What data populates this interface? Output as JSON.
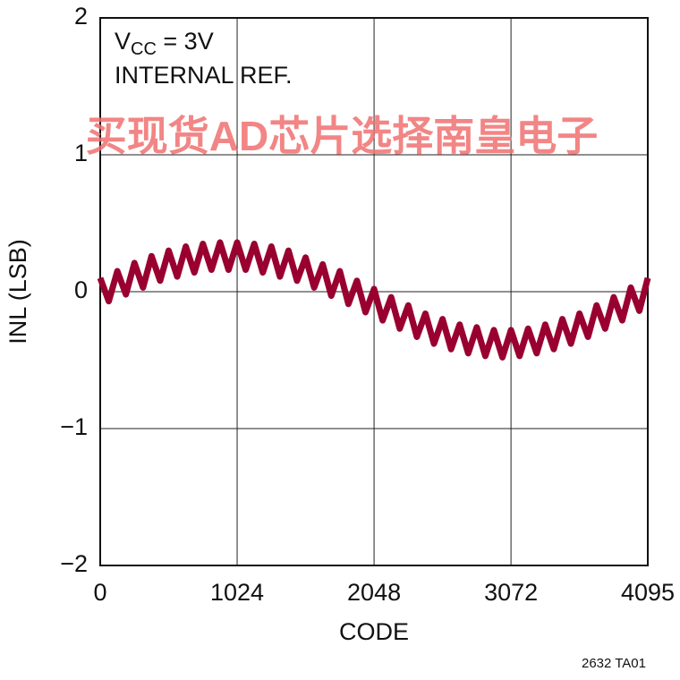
{
  "chart_data": {
    "type": "line",
    "annotation": {
      "main": "V",
      "sub": "CC",
      "tail": " = 3V",
      "line2": "INTERNAL REF."
    },
    "watermark": "买现货AD芯片选择南皇电子",
    "xlabel": "CODE",
    "ylabel": "INL (LSB)",
    "footnote": "2632 TA01",
    "x": [
      0,
      64,
      128,
      192,
      256,
      320,
      384,
      448,
      512,
      576,
      640,
      704,
      768,
      832,
      896,
      960,
      1024,
      1088,
      1152,
      1216,
      1280,
      1344,
      1408,
      1472,
      1536,
      1600,
      1664,
      1728,
      1792,
      1856,
      1920,
      1984,
      2048,
      2112,
      2176,
      2240,
      2304,
      2368,
      2432,
      2496,
      2560,
      2624,
      2688,
      2752,
      2816,
      2880,
      2944,
      3008,
      3072,
      3136,
      3200,
      3264,
      3328,
      3392,
      3456,
      3520,
      3584,
      3648,
      3712,
      3776,
      3840,
      3904,
      3968,
      4032,
      4095
    ],
    "series": [
      {
        "color": "#990030",
        "values": [
          0.1,
          -0.07,
          0.15,
          -0.02,
          0.21,
          0.03,
          0.26,
          0.08,
          0.3,
          0.11,
          0.33,
          0.14,
          0.35,
          0.16,
          0.36,
          0.16,
          0.36,
          0.16,
          0.35,
          0.14,
          0.33,
          0.11,
          0.3,
          0.08,
          0.25,
          0.03,
          0.2,
          -0.03,
          0.15,
          -0.09,
          0.08,
          -0.15,
          0.02,
          -0.21,
          -0.04,
          -0.27,
          -0.1,
          -0.33,
          -0.16,
          -0.38,
          -0.2,
          -0.42,
          -0.24,
          -0.45,
          -0.26,
          -0.47,
          -0.28,
          -0.48,
          -0.28,
          -0.47,
          -0.27,
          -0.45,
          -0.24,
          -0.42,
          -0.2,
          -0.38,
          -0.16,
          -0.33,
          -0.1,
          -0.27,
          -0.04,
          -0.21,
          0.03,
          -0.14,
          0.1
        ]
      }
    ],
    "xlim": [
      0,
      4095
    ],
    "xticks": [
      0,
      1024,
      2048,
      3072,
      4095
    ],
    "ylim": [
      -2,
      2
    ],
    "yticks": [
      {
        "value": -2,
        "label": "−2"
      },
      {
        "value": -1,
        "label": "−1"
      },
      0,
      1,
      2
    ],
    "grid": true
  }
}
